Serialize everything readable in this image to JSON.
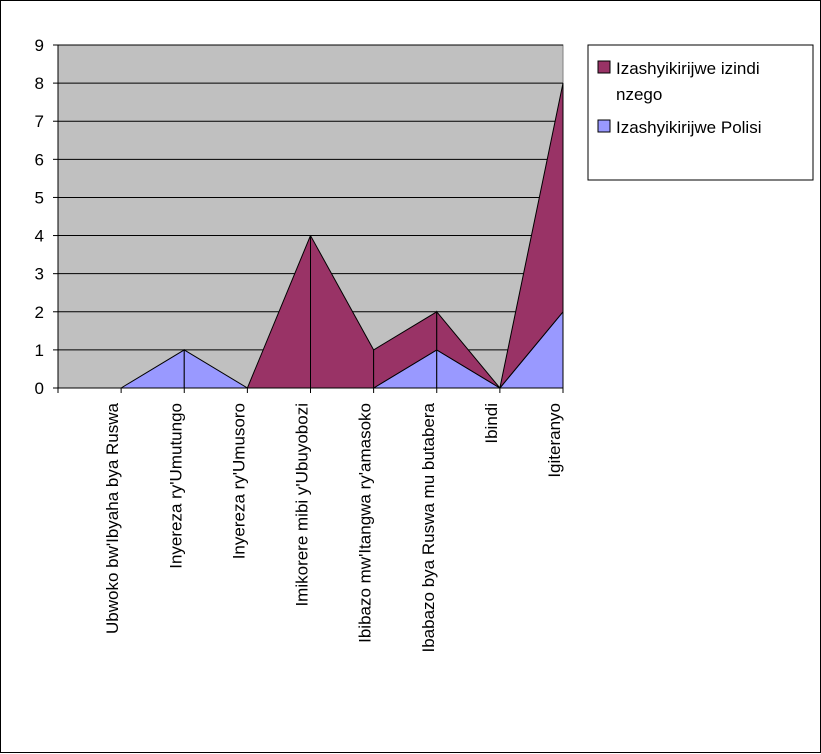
{
  "chart_data": {
    "type": "area",
    "categories": [
      "Ubwoko bw'Ibyaha bya Ruswa",
      "Inyereza ry'Umutungo",
      "Inyereza ry'Umusoro",
      "Imikorere mibi y'Ubuyobozi",
      "Ibibazo mw'Itangwa ry'amasoko",
      "Ibabazo bya Ruswa mu butabera",
      "Ibindi",
      "Igiteranyo"
    ],
    "stacked": true,
    "series": [
      {
        "name": "Izashyikirijwe Polisi",
        "values": [
          0,
          1,
          0,
          0,
          0,
          1,
          0,
          2
        ],
        "color": "#9999ff"
      },
      {
        "name": "Izashyikirijwe izindi nzego",
        "values": [
          0,
          0,
          0,
          4,
          1,
          1,
          0,
          6
        ],
        "color": "#993366"
      }
    ],
    "legend_order": [
      1,
      0
    ],
    "legend_lines": [
      [
        "Izashyikirijwe izindi",
        "nzego"
      ],
      [
        "Izashyikirijwe Polisi"
      ]
    ],
    "y_ticks": [
      "0",
      "1",
      "2",
      "3",
      "4",
      "5",
      "6",
      "7",
      "8",
      "9"
    ],
    "ylim": [
      0,
      9
    ],
    "grid": true,
    "plot_background": "#c0c0c0",
    "legend_position": "right",
    "title": "",
    "xlabel": "",
    "ylabel": ""
  }
}
